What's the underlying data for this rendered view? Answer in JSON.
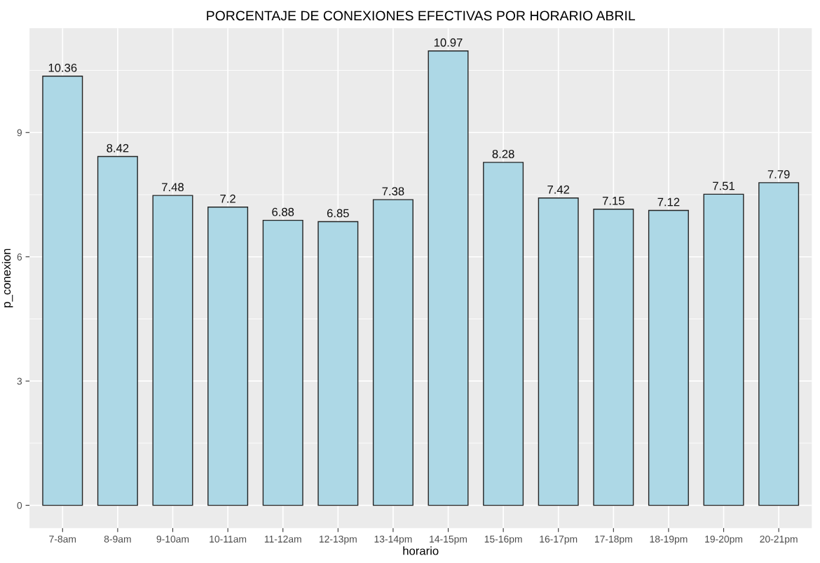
{
  "chart_data": {
    "type": "bar",
    "title": "PORCENTAJE DE CONEXIONES EFECTIVAS POR HORARIO ABRIL",
    "xlabel": "horario",
    "ylabel": "p_conexion",
    "categories": [
      "7-8am",
      "8-9am",
      "9-10am",
      "10-11am",
      "11-12am",
      "12-13pm",
      "13-14pm",
      "14-15pm",
      "15-16pm",
      "16-17pm",
      "17-18pm",
      "18-19pm",
      "19-20pm",
      "20-21pm"
    ],
    "values": [
      10.36,
      8.42,
      7.48,
      7.2,
      6.88,
      6.85,
      7.38,
      10.97,
      8.28,
      7.42,
      7.15,
      7.12,
      7.51,
      7.79
    ],
    "value_labels": [
      "10.36",
      "8.42",
      "7.48",
      "7.2",
      "6.88",
      "6.85",
      "7.38",
      "10.97",
      "8.28",
      "7.42",
      "7.15",
      "7.12",
      "7.51",
      "7.79"
    ],
    "color": "#add8e6",
    "ylim": [
      -0.55,
      11.52
    ],
    "yticks": [
      0,
      3,
      6,
      9
    ],
    "grid": true,
    "legend": false
  }
}
